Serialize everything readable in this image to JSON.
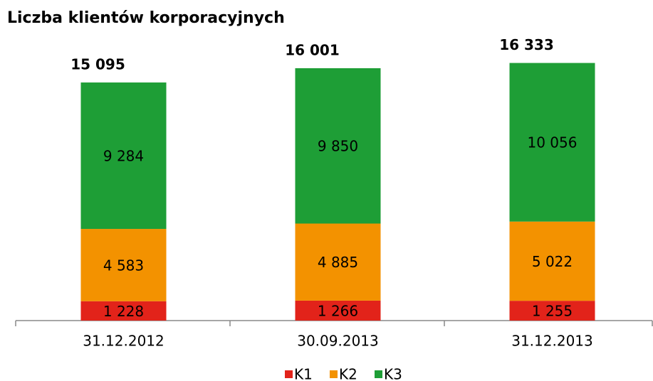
{
  "chart_data": {
    "type": "stacked-bar",
    "title": "Liczba klientów korporacyjnych",
    "categories": [
      "31.12.2012",
      "30.09.2013",
      "31.12.2013"
    ],
    "series": [
      {
        "name": "K1",
        "color": "#e2231a",
        "values": [
          1228,
          1266,
          1255
        ],
        "value_labels": [
          "1 228",
          "1 266",
          "1 255"
        ]
      },
      {
        "name": "K2",
        "color": "#f39200",
        "values": [
          4583,
          4885,
          5022
        ],
        "value_labels": [
          "4 583",
          "4 885",
          "5 022"
        ]
      },
      {
        "name": "K3",
        "color": "#1e9e36",
        "values": [
          9284,
          9850,
          10056
        ],
        "value_labels": [
          "9 284",
          "9 850",
          "10 056"
        ]
      }
    ],
    "totals": [
      15095,
      16001,
      16333
    ],
    "total_labels": [
      "15 095",
      "16 001",
      "16 333"
    ],
    "legend": "bottom"
  }
}
